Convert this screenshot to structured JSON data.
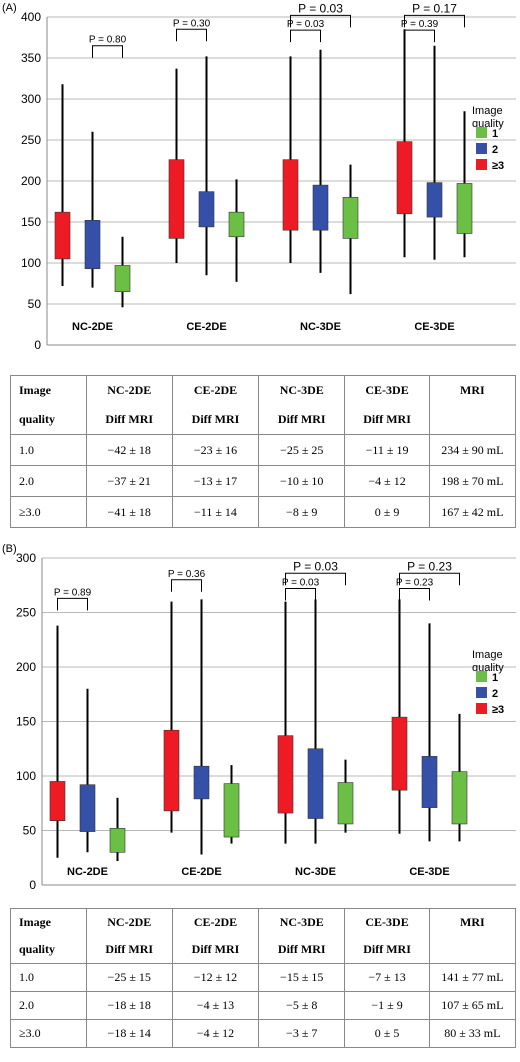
{
  "panels": [
    {
      "label": "(A)",
      "chart_data": {
        "type": "box",
        "ylim": [
          0,
          400
        ],
        "yticks": [
          0,
          50,
          100,
          150,
          200,
          250,
          300,
          350,
          400
        ],
        "grid": true,
        "categories": [
          "NC-2DE",
          "CE-2DE",
          "NC-3DE",
          "CE-3DE"
        ],
        "legend": {
          "title_lines": [
            "Image",
            "quality"
          ],
          "labels": [
            "1",
            "2",
            "≥3"
          ],
          "position": "right"
        },
        "colors": [
          "#ef1b24",
          "#3450a8",
          "#6cbf45"
        ],
        "boxes": [
          [
            {
              "low": 72,
              "q1": 105,
              "q3": 162,
              "high": 318
            },
            {
              "low": 70,
              "q1": 93,
              "q3": 152,
              "high": 260
            },
            {
              "low": 46,
              "q1": 65,
              "q3": 97,
              "high": 132
            }
          ],
          [
            {
              "low": 100,
              "q1": 130,
              "q3": 226,
              "high": 337
            },
            {
              "low": 85,
              "q1": 144,
              "q3": 187,
              "high": 352
            },
            {
              "low": 77,
              "q1": 132,
              "q3": 162,
              "high": 202
            }
          ],
          [
            {
              "low": 100,
              "q1": 140,
              "q3": 226,
              "high": 352
            },
            {
              "low": 88,
              "q1": 140,
              "q3": 195,
              "high": 360
            },
            {
              "low": 62,
              "q1": 130,
              "q3": 180,
              "high": 220
            }
          ],
          [
            {
              "low": 107,
              "q1": 160,
              "q3": 248,
              "high": 385
            },
            {
              "low": 104,
              "q1": 156,
              "q3": 198,
              "high": 365
            },
            {
              "low": 107,
              "q1": 136,
              "q3": 197,
              "high": 285
            }
          ]
        ],
        "pvalues": [
          {
            "category": 0,
            "text": "P = 0.80",
            "from": 1,
            "to": 2,
            "level": 365
          },
          {
            "category": 1,
            "text": "P = 0.30",
            "from": 0,
            "to": 1,
            "level": 385
          },
          {
            "category": 2,
            "text": "P = 0.03",
            "from": 0,
            "to": 2,
            "level": 402
          },
          {
            "category": 2,
            "text": "P = 0.03",
            "from": 0,
            "to": 1,
            "level": 384
          },
          {
            "category": 3,
            "text": "P = 0.17",
            "from": 0,
            "to": 2,
            "level": 402
          },
          {
            "category": 3,
            "text": "P = 0.39",
            "from": 0,
            "to": 1,
            "level": 384
          }
        ]
      },
      "table": {
        "headers": [
          [
            "Image",
            "NC-2DE",
            "CE-2DE",
            "NC-3DE",
            "CE-3DE",
            "MRI"
          ],
          [
            "quality",
            "Diff MRI",
            "Diff MRI",
            "Diff MRI",
            "Diff MRI",
            ""
          ]
        ],
        "rows": [
          [
            "1.0",
            "−42 ± 18",
            "−23 ± 16",
            "−25 ± 25",
            "−11 ± 19",
            "234 ± 90 mL"
          ],
          [
            "2.0",
            "−37 ± 21",
            "−13 ± 17",
            "−10 ± 10",
            "−4 ± 12",
            "198 ± 70 mL"
          ],
          [
            "≥3.0",
            "−41 ± 18",
            "−11 ± 14",
            "−8 ± 9",
            "0 ± 9",
            "167 ± 42 mL"
          ]
        ]
      }
    },
    {
      "label": "(B)",
      "chart_data": {
        "type": "box",
        "ylim": [
          0,
          300
        ],
        "yticks": [
          0,
          50,
          100,
          150,
          200,
          250,
          300
        ],
        "grid": true,
        "categories": [
          "NC-2DE",
          "CE-2DE",
          "NC-3DE",
          "CE-3DE"
        ],
        "legend": {
          "title_lines": [
            "Image",
            "quality"
          ],
          "labels": [
            "1",
            "2",
            "≥3"
          ],
          "position": "right"
        },
        "colors": [
          "#ef1b24",
          "#3450a8",
          "#6cbf45"
        ],
        "boxes": [
          [
            {
              "low": 25,
              "q1": 59,
              "q3": 95,
              "high": 238
            },
            {
              "low": 30,
              "q1": 49,
              "q3": 92,
              "high": 180
            },
            {
              "low": 22,
              "q1": 30,
              "q3": 52,
              "high": 80
            }
          ],
          [
            {
              "low": 48,
              "q1": 68,
              "q3": 142,
              "high": 260
            },
            {
              "low": 28,
              "q1": 79,
              "q3": 109,
              "high": 262
            },
            {
              "low": 38,
              "q1": 44,
              "q3": 93,
              "high": 110
            }
          ],
          [
            {
              "low": 38,
              "q1": 66,
              "q3": 137,
              "high": 260
            },
            {
              "low": 38,
              "q1": 61,
              "q3": 125,
              "high": 262
            },
            {
              "low": 48,
              "q1": 56,
              "q3": 94,
              "high": 115
            }
          ],
          [
            {
              "low": 47,
              "q1": 87,
              "q3": 154,
              "high": 262
            },
            {
              "low": 40,
              "q1": 71,
              "q3": 118,
              "high": 240
            },
            {
              "low": 40,
              "q1": 56,
              "q3": 104,
              "high": 157
            }
          ]
        ],
        "pvalues": [
          {
            "category": 0,
            "text": "P = 0.89",
            "from": 0,
            "to": 1,
            "level": 263
          },
          {
            "category": 1,
            "text": "P = 0.36",
            "from": 0,
            "to": 1,
            "level": 280
          },
          {
            "category": 2,
            "text": "P = 0.03",
            "from": 0,
            "to": 2,
            "level": 286
          },
          {
            "category": 2,
            "text": "P = 0.03",
            "from": 0,
            "to": 1,
            "level": 272
          },
          {
            "category": 3,
            "text": "P = 0.23",
            "from": 0,
            "to": 2,
            "level": 286
          },
          {
            "category": 3,
            "text": "P = 0.23",
            "from": 0,
            "to": 1,
            "level": 272
          }
        ]
      },
      "table": {
        "headers": [
          [
            "Image",
            "NC-2DE",
            "CE-2DE",
            "NC-3DE",
            "CE-3DE",
            "MRI"
          ],
          [
            "quality",
            "Diff MRI",
            "Diff MRI",
            "Diff MRI",
            "Diff MRI",
            ""
          ]
        ],
        "rows": [
          [
            "1.0",
            "−25 ± 15",
            "−12 ± 12",
            "−15 ± 15",
            "−7 ± 13",
            "141 ± 77 mL"
          ],
          [
            "2.0",
            "−18 ± 18",
            "−4 ± 13",
            "−5 ± 8",
            "−1 ± 9",
            "107 ± 65 mL"
          ],
          [
            "≥3.0",
            "−18 ± 14",
            "−4 ± 12",
            "−3 ± 7",
            "0 ± 5",
            "80 ± 33 mL"
          ]
        ]
      }
    }
  ]
}
